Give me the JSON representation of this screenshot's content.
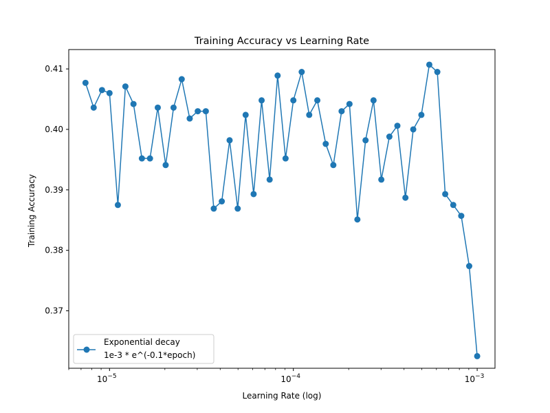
{
  "chart_data": {
    "type": "line",
    "title": "Training Accuracy vs Learning Rate",
    "xlabel": "Learning Rate (log)",
    "ylabel": "Training Accuracy",
    "xscale": "log",
    "xlim": [
      6e-06,
      0.00125
    ],
    "ylim": [
      0.3605,
      0.4132
    ],
    "grid": false,
    "legend_position": "lower-left",
    "x_major_ticks": [
      1e-05,
      0.0001,
      0.001
    ],
    "x_major_tick_labels": [
      {
        "base": "10",
        "exp": "−5"
      },
      {
        "base": "10",
        "exp": "−4"
      },
      {
        "base": "10",
        "exp": "−3"
      }
    ],
    "y_ticks": [
      0.37,
      0.38,
      0.39,
      0.4,
      0.41
    ],
    "y_tick_labels": [
      "0.37",
      "0.38",
      "0.39",
      "0.40",
      "0.41"
    ],
    "series": [
      {
        "name": "Exponential decay",
        "name_line2": "1e-3 * e^(-0.1*epoch)",
        "color": "#1f77b4",
        "marker": "circle",
        "x": [
          7.4e-06,
          8.2e-06,
          9.1e-06,
          1e-05,
          1.11e-05,
          1.22e-05,
          1.35e-05,
          1.5e-05,
          1.66e-05,
          1.83e-05,
          2.02e-05,
          2.23e-05,
          2.47e-05,
          2.73e-05,
          3.02e-05,
          3.34e-05,
          3.69e-05,
          4.08e-05,
          4.5e-05,
          4.98e-05,
          5.5e-05,
          6.08e-05,
          6.72e-05,
          7.43e-05,
          8.21e-05,
          9.07e-05,
          0.0001,
          0.000111,
          0.000122,
          0.000135,
          0.00015,
          0.000165,
          0.000183,
          0.000202,
          0.000223,
          0.000247,
          0.000273,
          0.000301,
          0.000333,
          0.000368,
          0.000407,
          0.000449,
          0.000497,
          0.000549,
          0.000607,
          0.00067,
          0.000741,
          0.000819,
          0.000905,
          0.001
        ],
        "y": [
          0.4077,
          0.4036,
          0.4065,
          0.406,
          0.3875,
          0.4071,
          0.4042,
          0.3952,
          0.3952,
          0.4036,
          0.3941,
          0.4036,
          0.4083,
          0.4018,
          0.403,
          0.403,
          0.3869,
          0.3881,
          0.3982,
          0.3869,
          0.4024,
          0.3893,
          0.4048,
          0.3917,
          0.4089,
          0.3952,
          0.4048,
          0.4095,
          0.4024,
          0.4048,
          0.3976,
          0.3941,
          0.403,
          0.4042,
          0.3851,
          0.3982,
          0.4048,
          0.3917,
          0.3988,
          0.4006,
          0.3887,
          0.4,
          0.4024,
          0.4107,
          0.4095,
          0.3893,
          0.3875,
          0.3857,
          0.3774,
          0.3625
        ]
      }
    ]
  }
}
